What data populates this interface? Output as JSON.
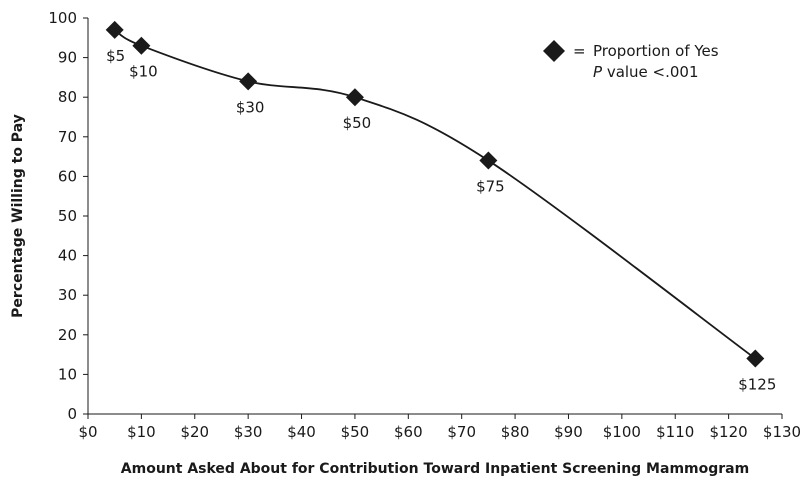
{
  "chart_data": {
    "type": "line",
    "xlabel": "Amount Asked About for Contribution Toward Inpatient Screening Mammogram",
    "ylabel": "Percentage Willing to Pay",
    "xlim": [
      0,
      130
    ],
    "ylim": [
      0,
      100
    ],
    "x_ticks": [
      0,
      10,
      20,
      30,
      40,
      50,
      60,
      70,
      80,
      90,
      100,
      110,
      120,
      130
    ],
    "x_tick_labels": [
      "$0",
      "$10",
      "$20",
      "$30",
      "$40",
      "$50",
      "$60",
      "$70",
      "$80",
      "$90",
      "$100",
      "$110",
      "$120",
      "$130"
    ],
    "y_ticks": [
      0,
      10,
      20,
      30,
      40,
      50,
      60,
      70,
      80,
      90,
      100
    ],
    "y_tick_labels": [
      "0",
      "10",
      "20",
      "30",
      "40",
      "50",
      "60",
      "70",
      "80",
      "90",
      "100"
    ],
    "grid": false,
    "legend": {
      "placement": "top-right",
      "marker": "diamond",
      "symbol": "=",
      "label": "Proportion of Yes",
      "note_italic": "P",
      "note_rest": " value  <.001"
    },
    "series": [
      {
        "name": "Proportion of Yes",
        "color": "#1a1a1a",
        "points": [
          {
            "x": 5,
            "y": 97,
            "label": "$5"
          },
          {
            "x": 10,
            "y": 93,
            "label": "$10"
          },
          {
            "x": 30,
            "y": 84,
            "label": "$30"
          },
          {
            "x": 50,
            "y": 80,
            "label": "$50"
          },
          {
            "x": 75,
            "y": 64,
            "label": "$75"
          },
          {
            "x": 125,
            "y": 14,
            "label": "$125"
          }
        ]
      }
    ]
  }
}
